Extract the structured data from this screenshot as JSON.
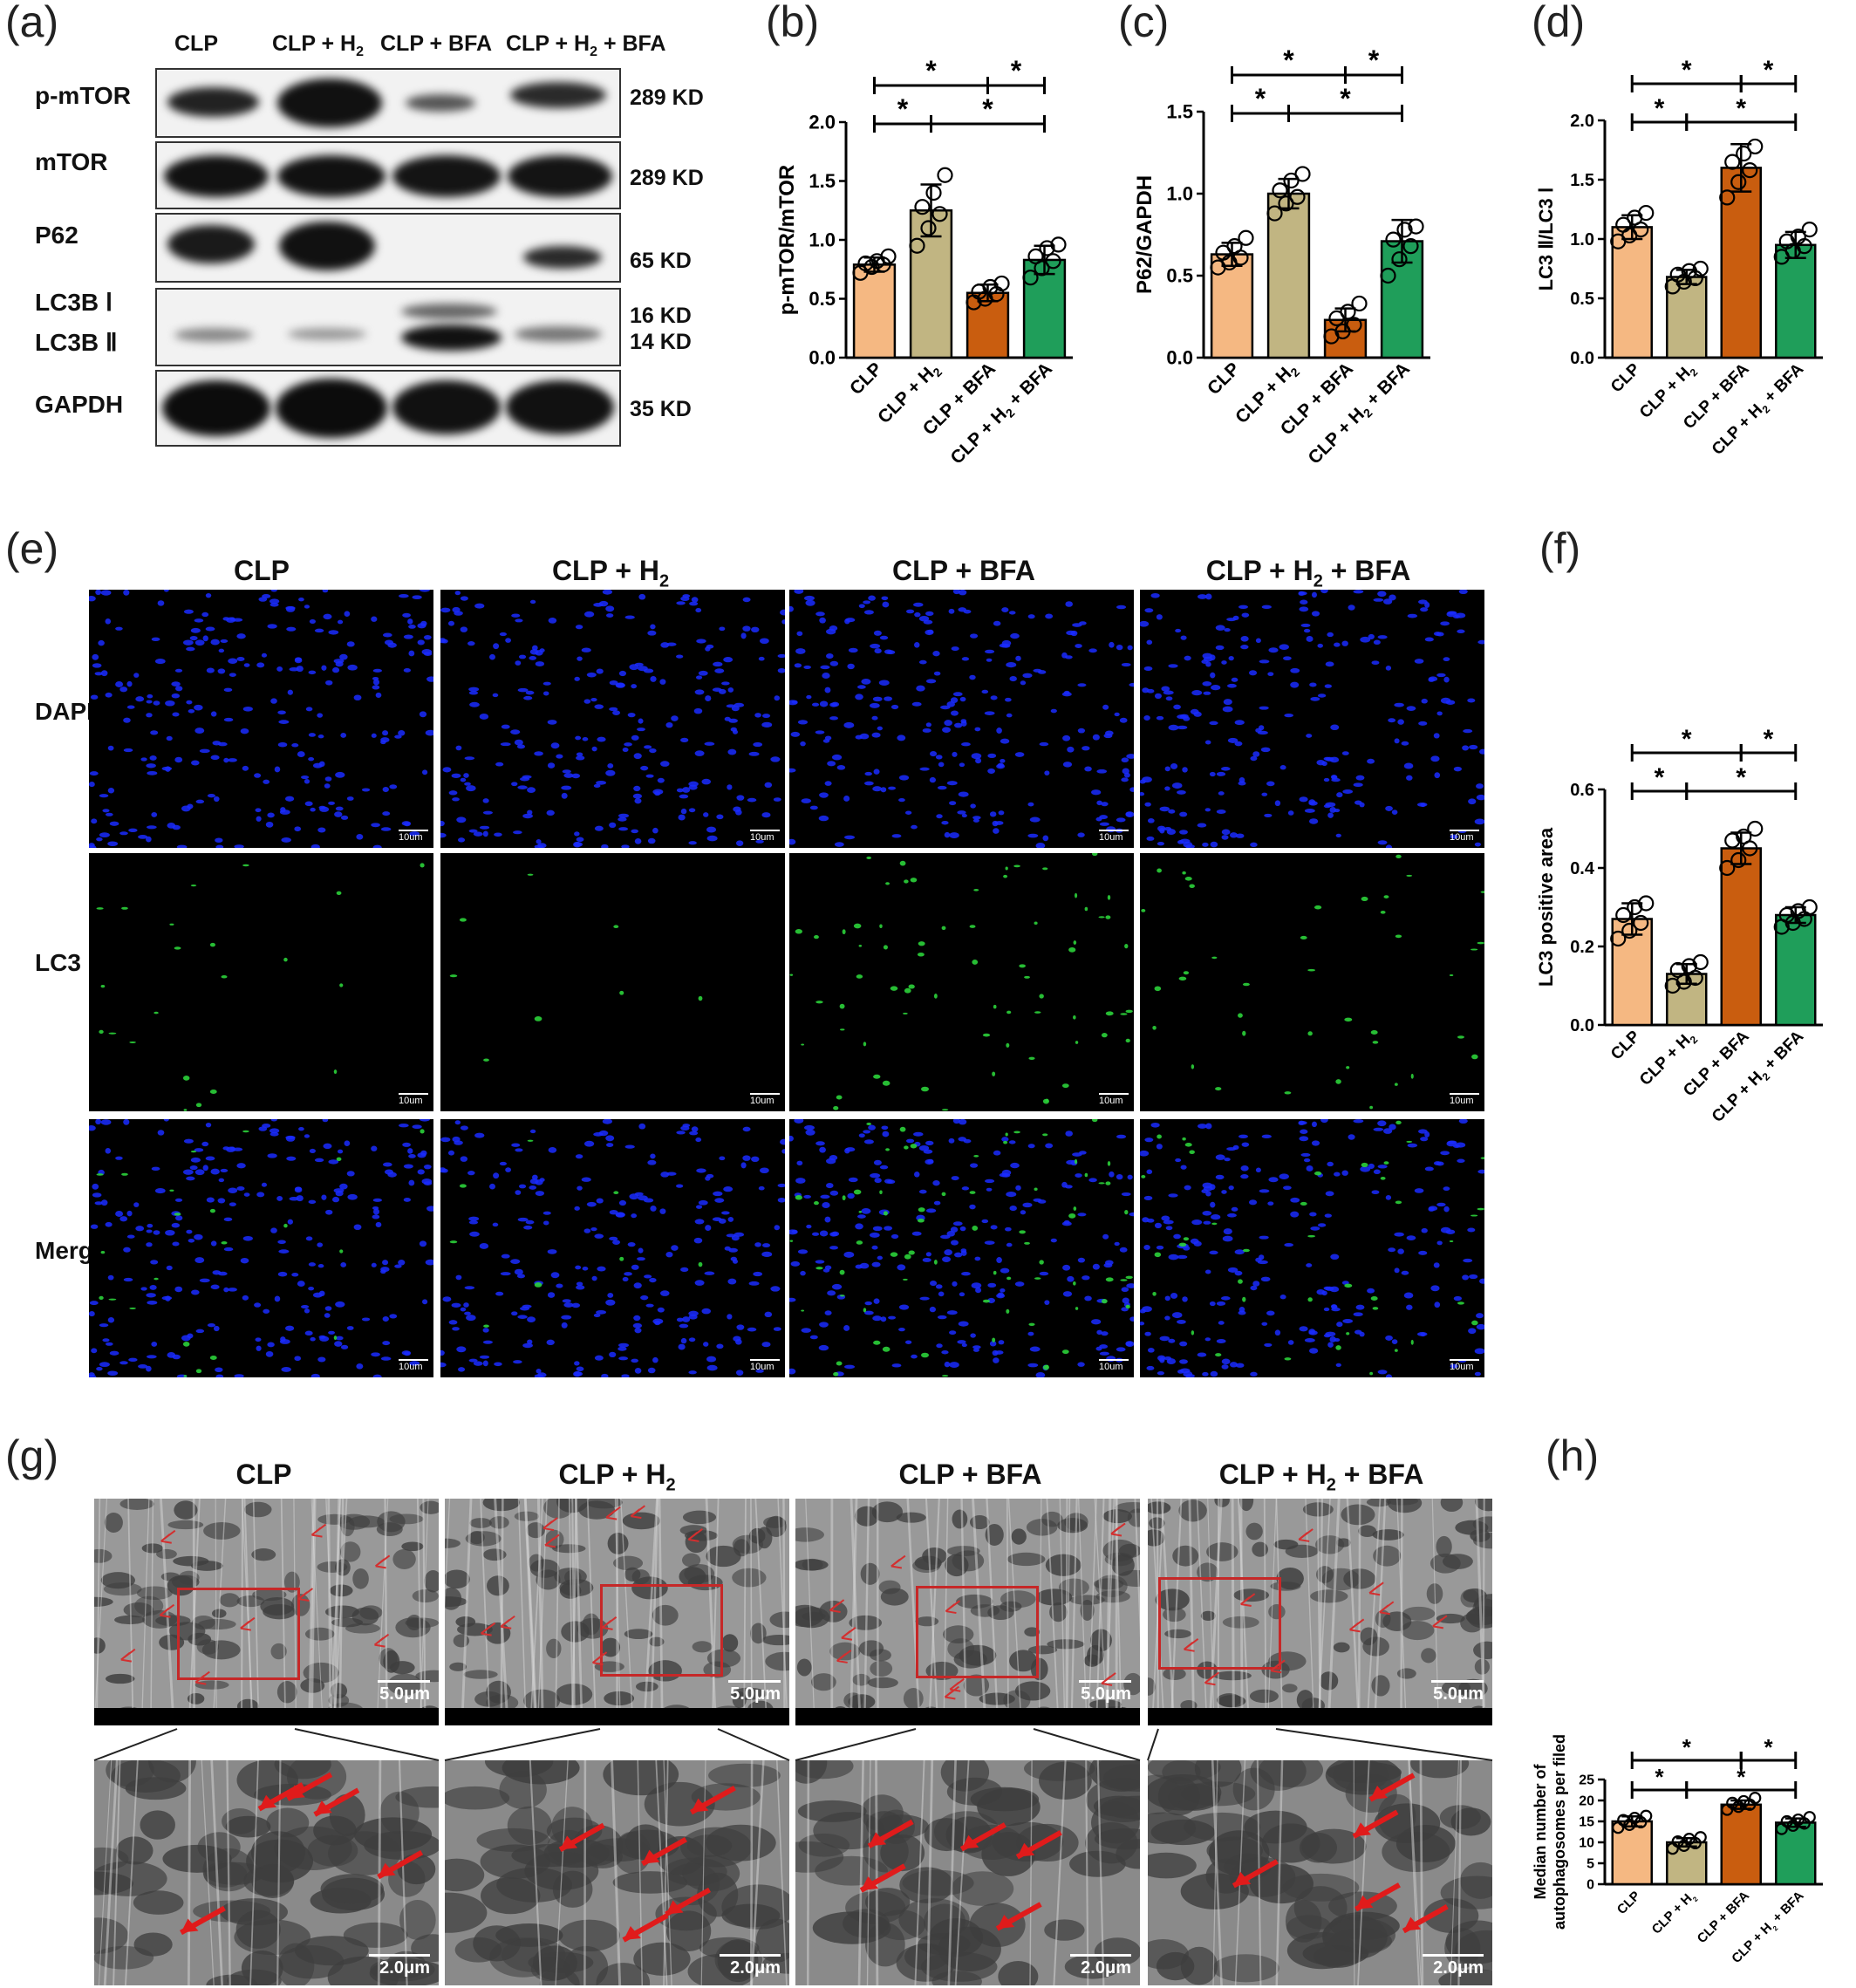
{
  "panel_letters": {
    "a": "(a)",
    "b": "(b)",
    "c": "(c)",
    "d": "(d)",
    "e": "(e)",
    "f": "(f)",
    "g": "(g)",
    "h": "(h)"
  },
  "groups": {
    "g1": {
      "main": "CLP",
      "sub": ""
    },
    "g2": {
      "main": "CLP + H",
      "sub": "2"
    },
    "g3": {
      "main": "CLP + BFA",
      "sub": ""
    },
    "g4": {
      "main": "CLP + H",
      "sub": "2",
      "tail": " + BFA"
    }
  },
  "colors": {
    "CLP": "#f5b882",
    "CLP + H2": "#c1b582",
    "CLP + BFA": "#c95d0f",
    "CLP + H2 + BFA": "#1f9e5a"
  },
  "western_blot": {
    "rows": [
      {
        "label": "p-mTOR",
        "size": "289 KD"
      },
      {
        "label": "mTOR",
        "size": "289 KD"
      },
      {
        "label": "P62",
        "size": "65 KD"
      },
      {
        "label": "LC3B Ⅰ",
        "size": "16 KD"
      },
      {
        "label": "LC3B Ⅱ",
        "size": "14 KD"
      },
      {
        "label": "GAPDH",
        "size": "35 KD"
      }
    ]
  },
  "fluorescence": {
    "rows": [
      "DAPI",
      "LC3",
      "Merge"
    ],
    "scale_label": "10um"
  },
  "em": {
    "scale_top": "5.0μm",
    "scale_bottom": "2.0μm"
  },
  "chart_data": [
    {
      "id": "b",
      "type": "bar",
      "categories": [
        "CLP",
        "CLP + H2",
        "CLP + BFA",
        "CLP + H2 + BFA"
      ],
      "values": [
        0.79,
        1.25,
        0.55,
        0.83
      ],
      "errors": [
        0.06,
        0.22,
        0.07,
        0.12
      ],
      "points": [
        [
          0.72,
          0.77,
          0.79,
          0.8,
          0.82,
          0.86
        ],
        [
          0.95,
          1.1,
          1.22,
          1.28,
          1.4,
          1.55
        ],
        [
          0.47,
          0.5,
          0.54,
          0.56,
          0.6,
          0.63
        ],
        [
          0.68,
          0.76,
          0.82,
          0.86,
          0.93,
          0.96
        ]
      ],
      "ylabel": "p-mTOR/mTOR",
      "ylim": [
        0,
        2.0
      ],
      "yticks": [
        "0.0",
        "0.5",
        "1.0",
        "1.5",
        "2.0"
      ],
      "significance": [
        "*",
        "*",
        "*",
        "*"
      ]
    },
    {
      "id": "c",
      "type": "bar",
      "categories": [
        "CLP",
        "CLP + H2",
        "CLP + BFA",
        "CLP + H2 + BFA"
      ],
      "values": [
        0.63,
        1.0,
        0.23,
        0.71
      ],
      "errors": [
        0.07,
        0.09,
        0.07,
        0.13
      ],
      "points": [
        [
          0.55,
          0.58,
          0.61,
          0.64,
          0.68,
          0.73
        ],
        [
          0.88,
          0.94,
          0.98,
          1.02,
          1.08,
          1.12
        ],
        [
          0.13,
          0.16,
          0.2,
          0.24,
          0.28,
          0.33
        ],
        [
          0.5,
          0.6,
          0.68,
          0.72,
          0.78,
          0.8
        ]
      ],
      "ylabel": "P62/GAPDH",
      "ylim": [
        0,
        1.5
      ],
      "yticks": [
        "0.0",
        "0.5",
        "1.0",
        "1.5"
      ],
      "significance": [
        "*",
        "*",
        "*",
        "*"
      ]
    },
    {
      "id": "d",
      "type": "bar",
      "categories": [
        "CLP",
        "CLP + H2",
        "CLP + BFA",
        "CLP + H2 + BFA"
      ],
      "values": [
        1.1,
        0.68,
        1.6,
        0.95
      ],
      "errors": [
        0.1,
        0.06,
        0.2,
        0.11
      ],
      "points": [
        [
          0.98,
          1.03,
          1.08,
          1.12,
          1.18,
          1.22
        ],
        [
          0.6,
          0.64,
          0.67,
          0.7,
          0.73,
          0.75
        ],
        [
          1.35,
          1.48,
          1.58,
          1.65,
          1.72,
          1.78
        ],
        [
          0.85,
          0.9,
          0.94,
          0.98,
          1.02,
          1.08
        ]
      ],
      "ylabel": "LC3 Ⅱ/LC3 Ⅰ",
      "ylim": [
        0,
        2.0
      ],
      "yticks": [
        "0.0",
        "0.5",
        "1.0",
        "1.5",
        "2.0"
      ],
      "significance": [
        "*",
        "*",
        "*",
        "*"
      ]
    },
    {
      "id": "f",
      "type": "bar",
      "categories": [
        "CLP",
        "CLP + H2",
        "CLP + BFA",
        "CLP + H2 + BFA"
      ],
      "values": [
        0.27,
        0.13,
        0.45,
        0.28
      ],
      "errors": [
        0.04,
        0.025,
        0.04,
        0.02
      ],
      "points": [
        [
          0.22,
          0.24,
          0.26,
          0.28,
          0.3,
          0.31
        ],
        [
          0.1,
          0.11,
          0.12,
          0.14,
          0.15,
          0.16
        ],
        [
          0.4,
          0.42,
          0.45,
          0.47,
          0.48,
          0.5
        ],
        [
          0.25,
          0.26,
          0.27,
          0.28,
          0.29,
          0.3
        ]
      ],
      "ylabel": "LC3 positive area",
      "ylim": [
        0,
        0.6
      ],
      "yticks": [
        "0.0",
        "0.2",
        "0.4",
        "0.6"
      ],
      "significance": [
        "*",
        "*",
        "*",
        "*"
      ]
    },
    {
      "id": "h",
      "type": "bar",
      "categories": [
        "CLP",
        "CLP + H2",
        "CLP + BFA",
        "CLP + H2 + BFA"
      ],
      "values": [
        15,
        10,
        19,
        14.7
      ],
      "errors": [
        1.2,
        1.0,
        1.0,
        1.0
      ],
      "points": [
        [
          13.5,
          14.2,
          14.8,
          15.3,
          15.8,
          16.3
        ],
        [
          8.5,
          9.2,
          9.8,
          10.2,
          10.8,
          11.2
        ],
        [
          17.8,
          18.5,
          19.0,
          19.4,
          19.8,
          20.6
        ],
        [
          13.2,
          14.0,
          14.5,
          15.0,
          15.4,
          16.0
        ]
      ],
      "ylabel": "Median number of autophagosomes per filed",
      "ylim": [
        0,
        25
      ],
      "yticks": [
        "0",
        "5",
        "10",
        "15",
        "20",
        "25"
      ],
      "significance": [
        "*",
        "*",
        "*",
        "*"
      ]
    }
  ]
}
